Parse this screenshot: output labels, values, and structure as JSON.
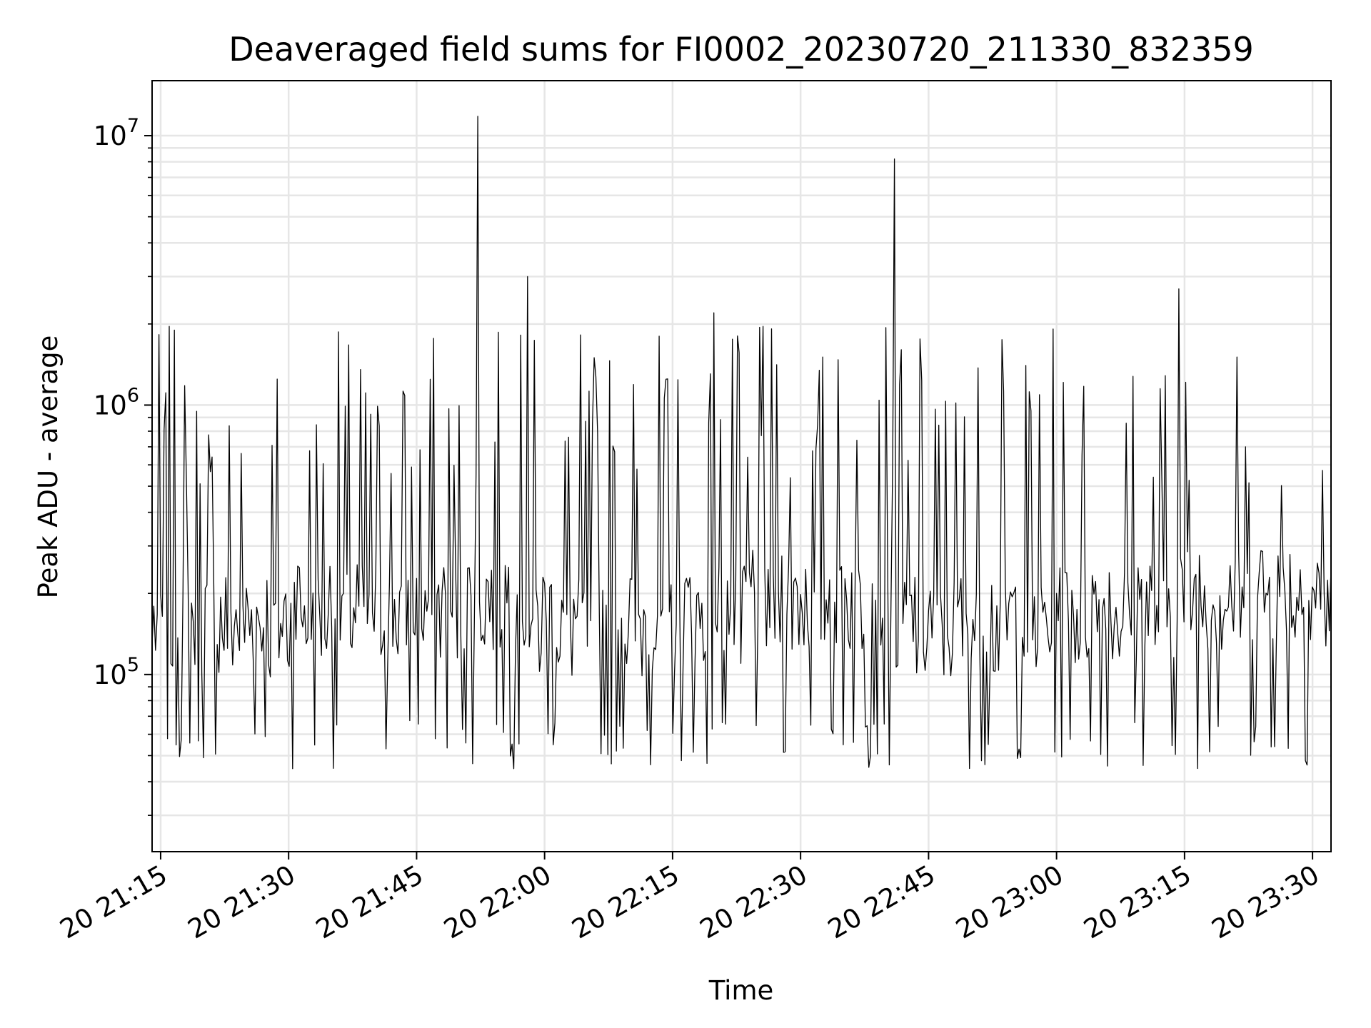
{
  "chart_data": {
    "type": "line",
    "title": "Deaveraged field sums for FI0002_20230720_211330_832359",
    "xlabel": "Time",
    "ylabel": "Peak ADU - average",
    "y_scale": "log",
    "grid": true,
    "line_color": "#000000",
    "grid_color": "#e6e6e6",
    "xlim": [
      "2023-07-20 21:14:00",
      "2023-07-20 23:32:10"
    ],
    "ylim": [
      22000,
      16000000
    ],
    "x_ticks": [
      "2023-07-20 21:15",
      "2023-07-20 21:30",
      "2023-07-20 21:45",
      "2023-07-20 22:00",
      "2023-07-20 22:15",
      "2023-07-20 22:30",
      "2023-07-20 22:45",
      "2023-07-20 23:00",
      "2023-07-20 23:15",
      "2023-07-20 23:30"
    ],
    "x_tick_labels": [
      "20 21:15",
      "20 21:30",
      "20 21:45",
      "20 22:00",
      "20 22:15",
      "20 22:30",
      "20 22:45",
      "20 23:00",
      "20 23:15",
      "20 23:30"
    ],
    "y_ticks": [
      {
        "base": "10",
        "exp": "5"
      },
      {
        "base": "10",
        "exp": "6"
      },
      {
        "base": "10",
        "exp": "7"
      }
    ],
    "series": [
      {
        "x": [
          "2023-07-20 21:14:00",
          "2023-07-20 21:30:40",
          "2023-07-20 21:52:10",
          "2023-07-20 21:58:00",
          "2023-07-20 22:19:50",
          "2023-07-20 22:23:00",
          "2023-07-20 22:41:00",
          "2023-07-20 23:00:00",
          "2023-07-20 23:14:20",
          "2023-07-20 23:32:10"
        ],
        "y": [
          130000,
          220000,
          11800000,
          3000000,
          2200000,
          110000,
          8200000,
          200000,
          2700000,
          250000
        ]
      }
    ]
  }
}
